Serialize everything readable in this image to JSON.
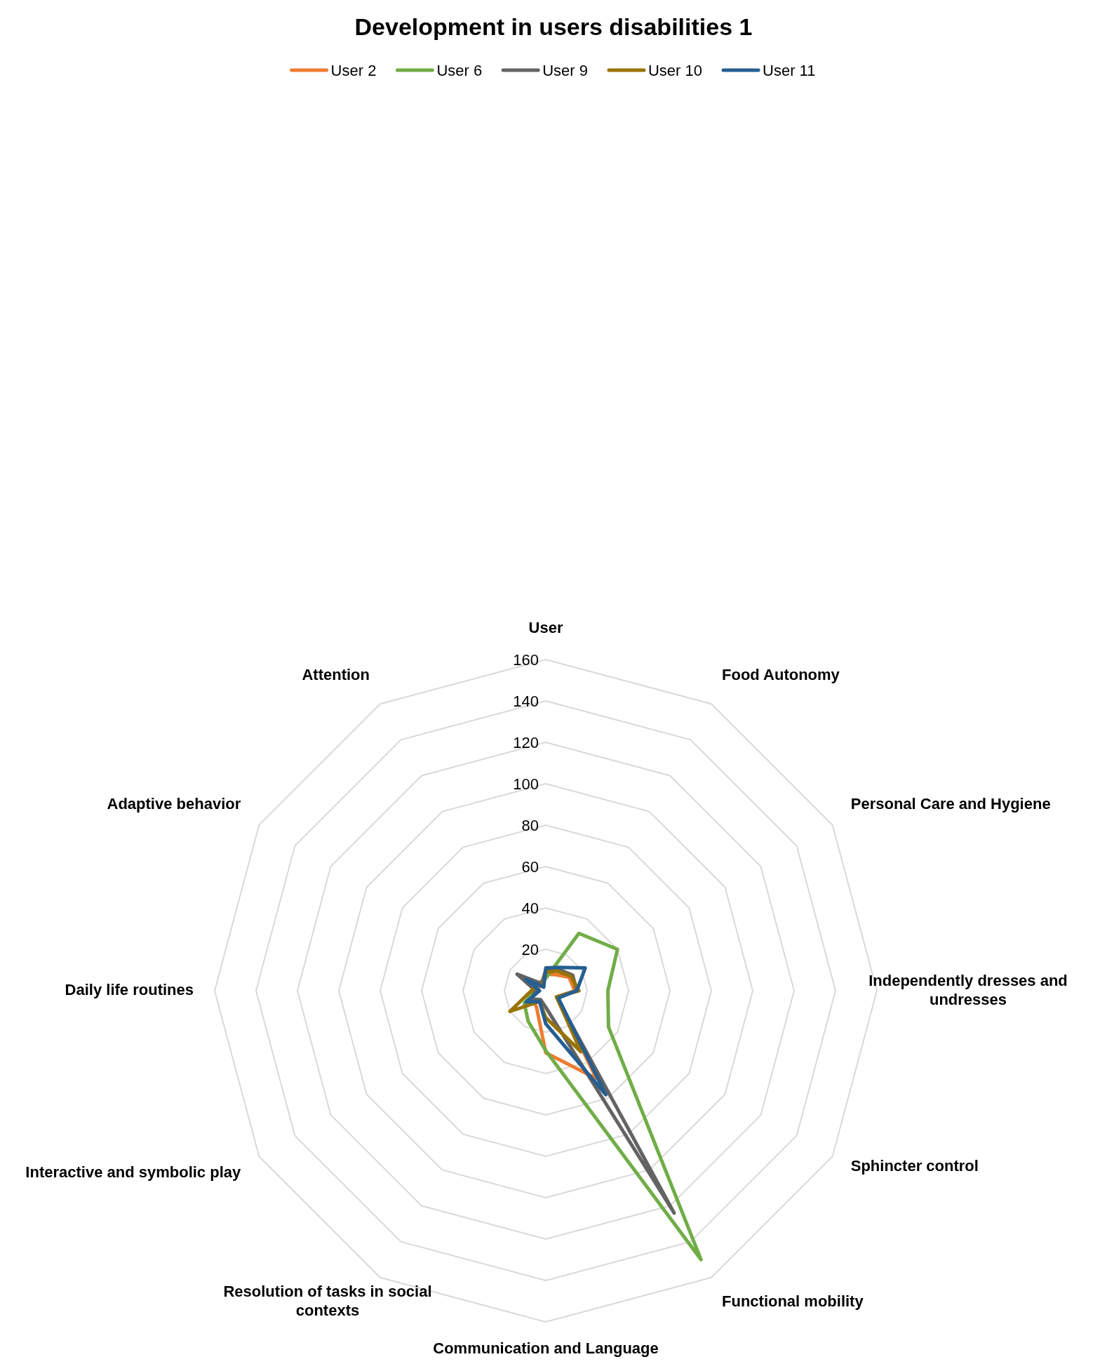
{
  "chart_data": {
    "type": "radar",
    "title": "Development in users disabilities 1",
    "categories": [
      "User",
      "Food Autonomy",
      "Personal Care and Hygiene",
      "Independently dresses and undresses",
      "Sphincter control",
      "Functional mobility",
      "Communication and Language",
      "Resolution of tasks in social contexts",
      "Interactive and symbolic play",
      "Daily life routines",
      "Adaptive behavior",
      "Attention"
    ],
    "ylim": [
      0,
      160
    ],
    "yticks": [
      0,
      20,
      40,
      60,
      80,
      100,
      120,
      140,
      160
    ],
    "grid": true,
    "legend": "top",
    "marker": "none",
    "series": [
      {
        "name": "User 2",
        "color": "#ed7d31",
        "values": [
          8,
          9,
          13,
          14,
          6,
          49,
          30,
          9,
          8,
          4,
          4,
          3
        ]
      },
      {
        "name": "User 6",
        "color": "#70ad47",
        "values": [
          6,
          32,
          40,
          30,
          35,
          150,
          29,
          17,
          12,
          5,
          5,
          5
        ]
      },
      {
        "name": "User 9",
        "color": "#636363",
        "values": [
          10,
          12,
          15,
          15,
          6,
          124,
          8,
          5,
          8,
          5,
          16,
          4
        ]
      },
      {
        "name": "User 10",
        "color": "#997300",
        "values": [
          9,
          11,
          14,
          16,
          6,
          34,
          13,
          6,
          20,
          7,
          5,
          3
        ]
      },
      {
        "name": "User 11",
        "color": "#255e91",
        "values": [
          11,
          13,
          22,
          15,
          7,
          58,
          16,
          6,
          11,
          3,
          11,
          2
        ]
      }
    ]
  }
}
